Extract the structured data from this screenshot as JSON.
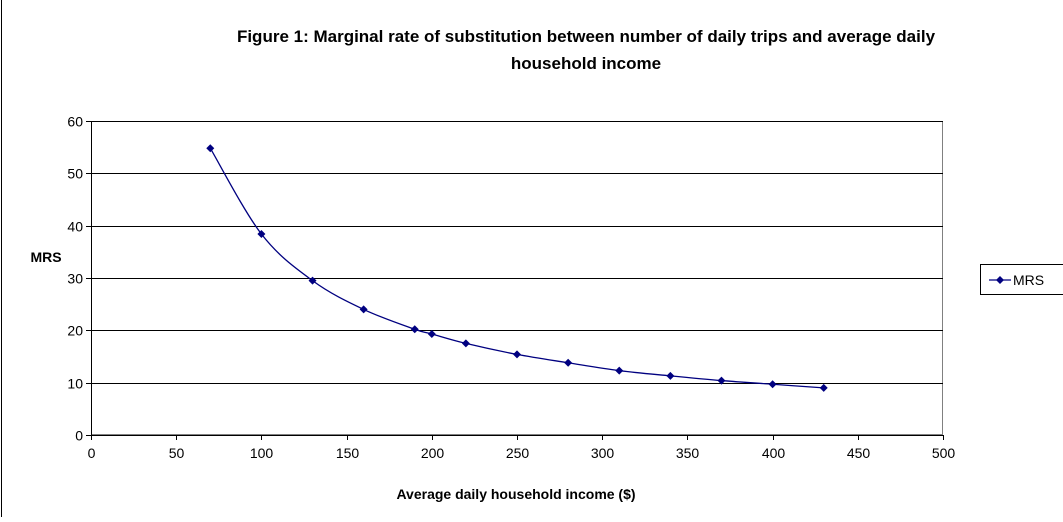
{
  "chart_data": {
    "type": "line",
    "title_line1": "Figure 1: Marginal rate of substitution between number of daily trips and average daily",
    "title_line2": "household income",
    "xlabel": "Average daily household income ($)",
    "ylabel": "MRS",
    "xlim": [
      0,
      500
    ],
    "ylim": [
      0,
      60
    ],
    "x_ticks": [
      "0",
      "50",
      "100",
      "150",
      "200",
      "250",
      "300",
      "350",
      "400",
      "450",
      "500"
    ],
    "y_ticks": [
      "0",
      "10",
      "20",
      "30",
      "40",
      "50",
      "60"
    ],
    "grid": "horizontal",
    "legend_position": "right",
    "series": [
      {
        "name": "MRS",
        "color": "#000080",
        "marker": "diamond",
        "x": [
          70,
          100,
          130,
          160,
          190,
          200,
          220,
          250,
          280,
          310,
          340,
          370,
          400,
          430
        ],
        "y": [
          54.8,
          38.4,
          29.5,
          24.0,
          20.2,
          19.3,
          17.5,
          15.4,
          13.8,
          12.3,
          11.3,
          10.4,
          9.7,
          9.0
        ]
      }
    ]
  }
}
